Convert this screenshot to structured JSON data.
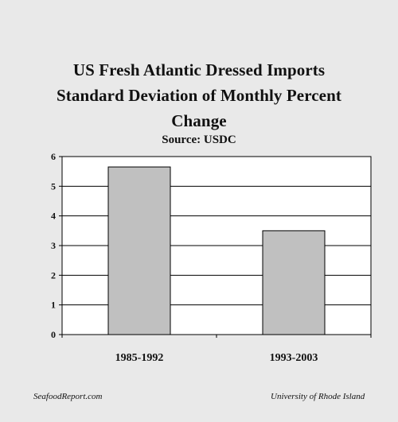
{
  "chart_data": {
    "type": "bar",
    "title": "US Fresh Atlantic Dressed Imports Standard Deviation of Monthly Percent Change",
    "title_lines": [
      "US Fresh Atlantic Dressed Imports",
      "Standard Deviation of Monthly Percent",
      "Change"
    ],
    "subtitle": "Source: USDC",
    "categories": [
      "1985-1992",
      "1993-2003"
    ],
    "values": [
      5.65,
      3.5
    ],
    "ylim": [
      0,
      6
    ],
    "yticks": [
      "0",
      "1",
      "2",
      "3",
      "4",
      "5",
      "6"
    ],
    "grid": true,
    "legend": "none",
    "xlabel": "",
    "ylabel": "",
    "bar_color": "#c0c0c0",
    "plot_background": "#ffffff",
    "background": "#e9e9e9"
  },
  "footer": {
    "left": "SeafoodReport.com",
    "right": "University of Rhode Island"
  }
}
